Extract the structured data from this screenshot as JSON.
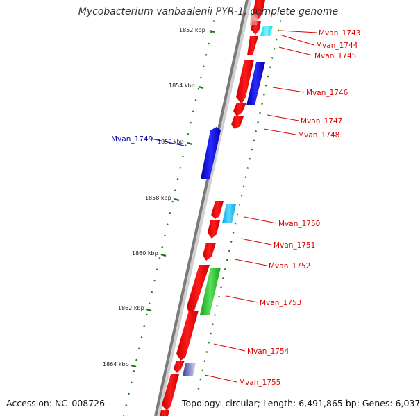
{
  "title": "Mycobacterium vanbaalenii PYR-1, complete genome",
  "footer": {
    "accession": "Accession: NC_008726",
    "summary": "Topology: circular; Length: 6,491,865 bp; Genes: 6,037"
  },
  "colors": {
    "backbone": "#7a7a7a",
    "tick": "#1a7a1a",
    "forward_gene": "#ee0000",
    "label_red": "#dd0000",
    "label_blue": "#0000aa",
    "blue_gene": "#0a0aee",
    "cyan_gene": "#18c0ee",
    "green_gene": "#2ecc2e",
    "purple_gene": "#6a6ab0"
  },
  "ruler": [
    {
      "label": "1852 kbp",
      "kbp": 1852
    },
    {
      "label": "1854 kbp",
      "kbp": 1854
    },
    {
      "label": "1856 kbp",
      "kbp": 1856
    },
    {
      "label": "1858 kbp",
      "kbp": 1858
    },
    {
      "label": "1860 kbp",
      "kbp": 1860
    },
    {
      "label": "1862 kbp",
      "kbp": 1862
    },
    {
      "label": "1864 kbp",
      "kbp": 1864
    }
  ],
  "gene_labels": [
    {
      "text": "Mvan_1743",
      "color": "red"
    },
    {
      "text": "Mvan_1744",
      "color": "red"
    },
    {
      "text": "Mvan_1745",
      "color": "red"
    },
    {
      "text": "Mvan_1746",
      "color": "red"
    },
    {
      "text": "Mvan_1747",
      "color": "red"
    },
    {
      "text": "Mvan_1748",
      "color": "red"
    },
    {
      "text": "Mvan_1749",
      "color": "blue"
    },
    {
      "text": "Mvan_1750",
      "color": "red"
    },
    {
      "text": "Mvan_1751",
      "color": "red"
    },
    {
      "text": "Mvan_1752",
      "color": "red"
    },
    {
      "text": "Mvan_1753",
      "color": "red"
    },
    {
      "text": "Mvan_1754",
      "color": "red"
    },
    {
      "text": "Mvan_1755",
      "color": "red"
    }
  ]
}
